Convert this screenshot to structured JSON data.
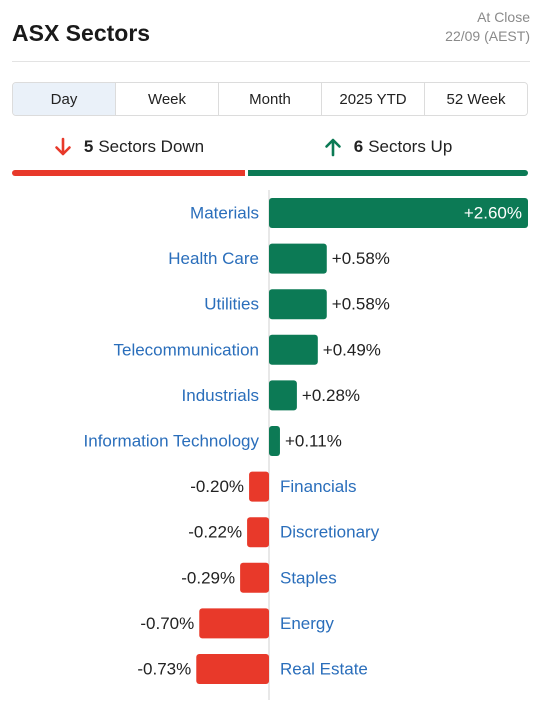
{
  "header": {
    "title": "ASX Sectors",
    "asof_line1": "At Close",
    "asof_line2": "22/09 (AEST)"
  },
  "tabs": [
    {
      "label": "Day",
      "active": true
    },
    {
      "label": "Week",
      "active": false
    },
    {
      "label": "Month",
      "active": false
    },
    {
      "label": "2025 YTD",
      "active": false
    },
    {
      "label": "52 Week",
      "active": false
    }
  ],
  "summary": {
    "down_count": "5",
    "down_label": "Sectors Down",
    "up_count": "6",
    "up_label": "Sectors Up",
    "down_color": "#e8392a",
    "up_color": "#0c7a55"
  },
  "chart_data": {
    "type": "bar",
    "orientation": "horizontal-diverging",
    "categories": [
      "Materials",
      "Health Care",
      "Utilities",
      "Telecommunication",
      "Industrials",
      "Information Technology",
      "Financials",
      "Discretionary",
      "Staples",
      "Energy",
      "Real Estate"
    ],
    "values": [
      2.6,
      0.58,
      0.58,
      0.49,
      0.28,
      0.11,
      -0.2,
      -0.22,
      -0.29,
      -0.7,
      -0.73
    ],
    "labels": [
      "+2.60%",
      "+0.58%",
      "+0.58%",
      "+0.49%",
      "+0.28%",
      "+0.11%",
      "-0.20%",
      "-0.22%",
      "-0.29%",
      "-0.70%",
      "-0.73%"
    ],
    "xlim": [
      -0.73,
      2.6
    ],
    "positive_color": "#0c7a55",
    "negative_color": "#e8392a"
  }
}
